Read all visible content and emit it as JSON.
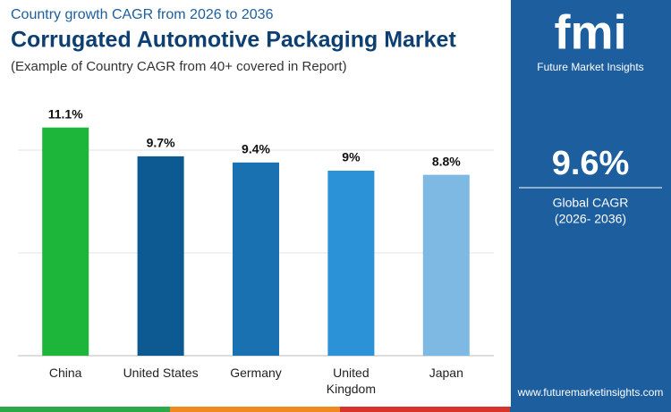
{
  "chart_data": {
    "type": "bar",
    "supertitle": "Country growth CAGR from 2026 to 2036",
    "title": "Corrugated Automotive Packaging Market",
    "subtitle": "(Example of Country CAGR from 40+ covered in Report)",
    "categories": [
      "China",
      "United States",
      "Germany",
      "United Kingdom",
      "Japan"
    ],
    "values": [
      11.1,
      9.7,
      9.4,
      9,
      8.8
    ],
    "value_labels": [
      "11.1%",
      "9.7%",
      "9.4%",
      "9%",
      "8.8%"
    ],
    "colors": [
      "#1db53a",
      "#0d5a92",
      "#1a71b1",
      "#2c92d8",
      "#7db9e3"
    ],
    "ylim": [
      0,
      12
    ],
    "yticks": [
      0,
      5,
      10
    ],
    "grid": true
  },
  "brand": {
    "logo": "fmi",
    "name": "Future Market Insights",
    "url": "www.futuremarketinsights.com"
  },
  "highlight": {
    "value": "9.6%",
    "label": "Global CAGR",
    "period": "(2026- 2036)"
  }
}
